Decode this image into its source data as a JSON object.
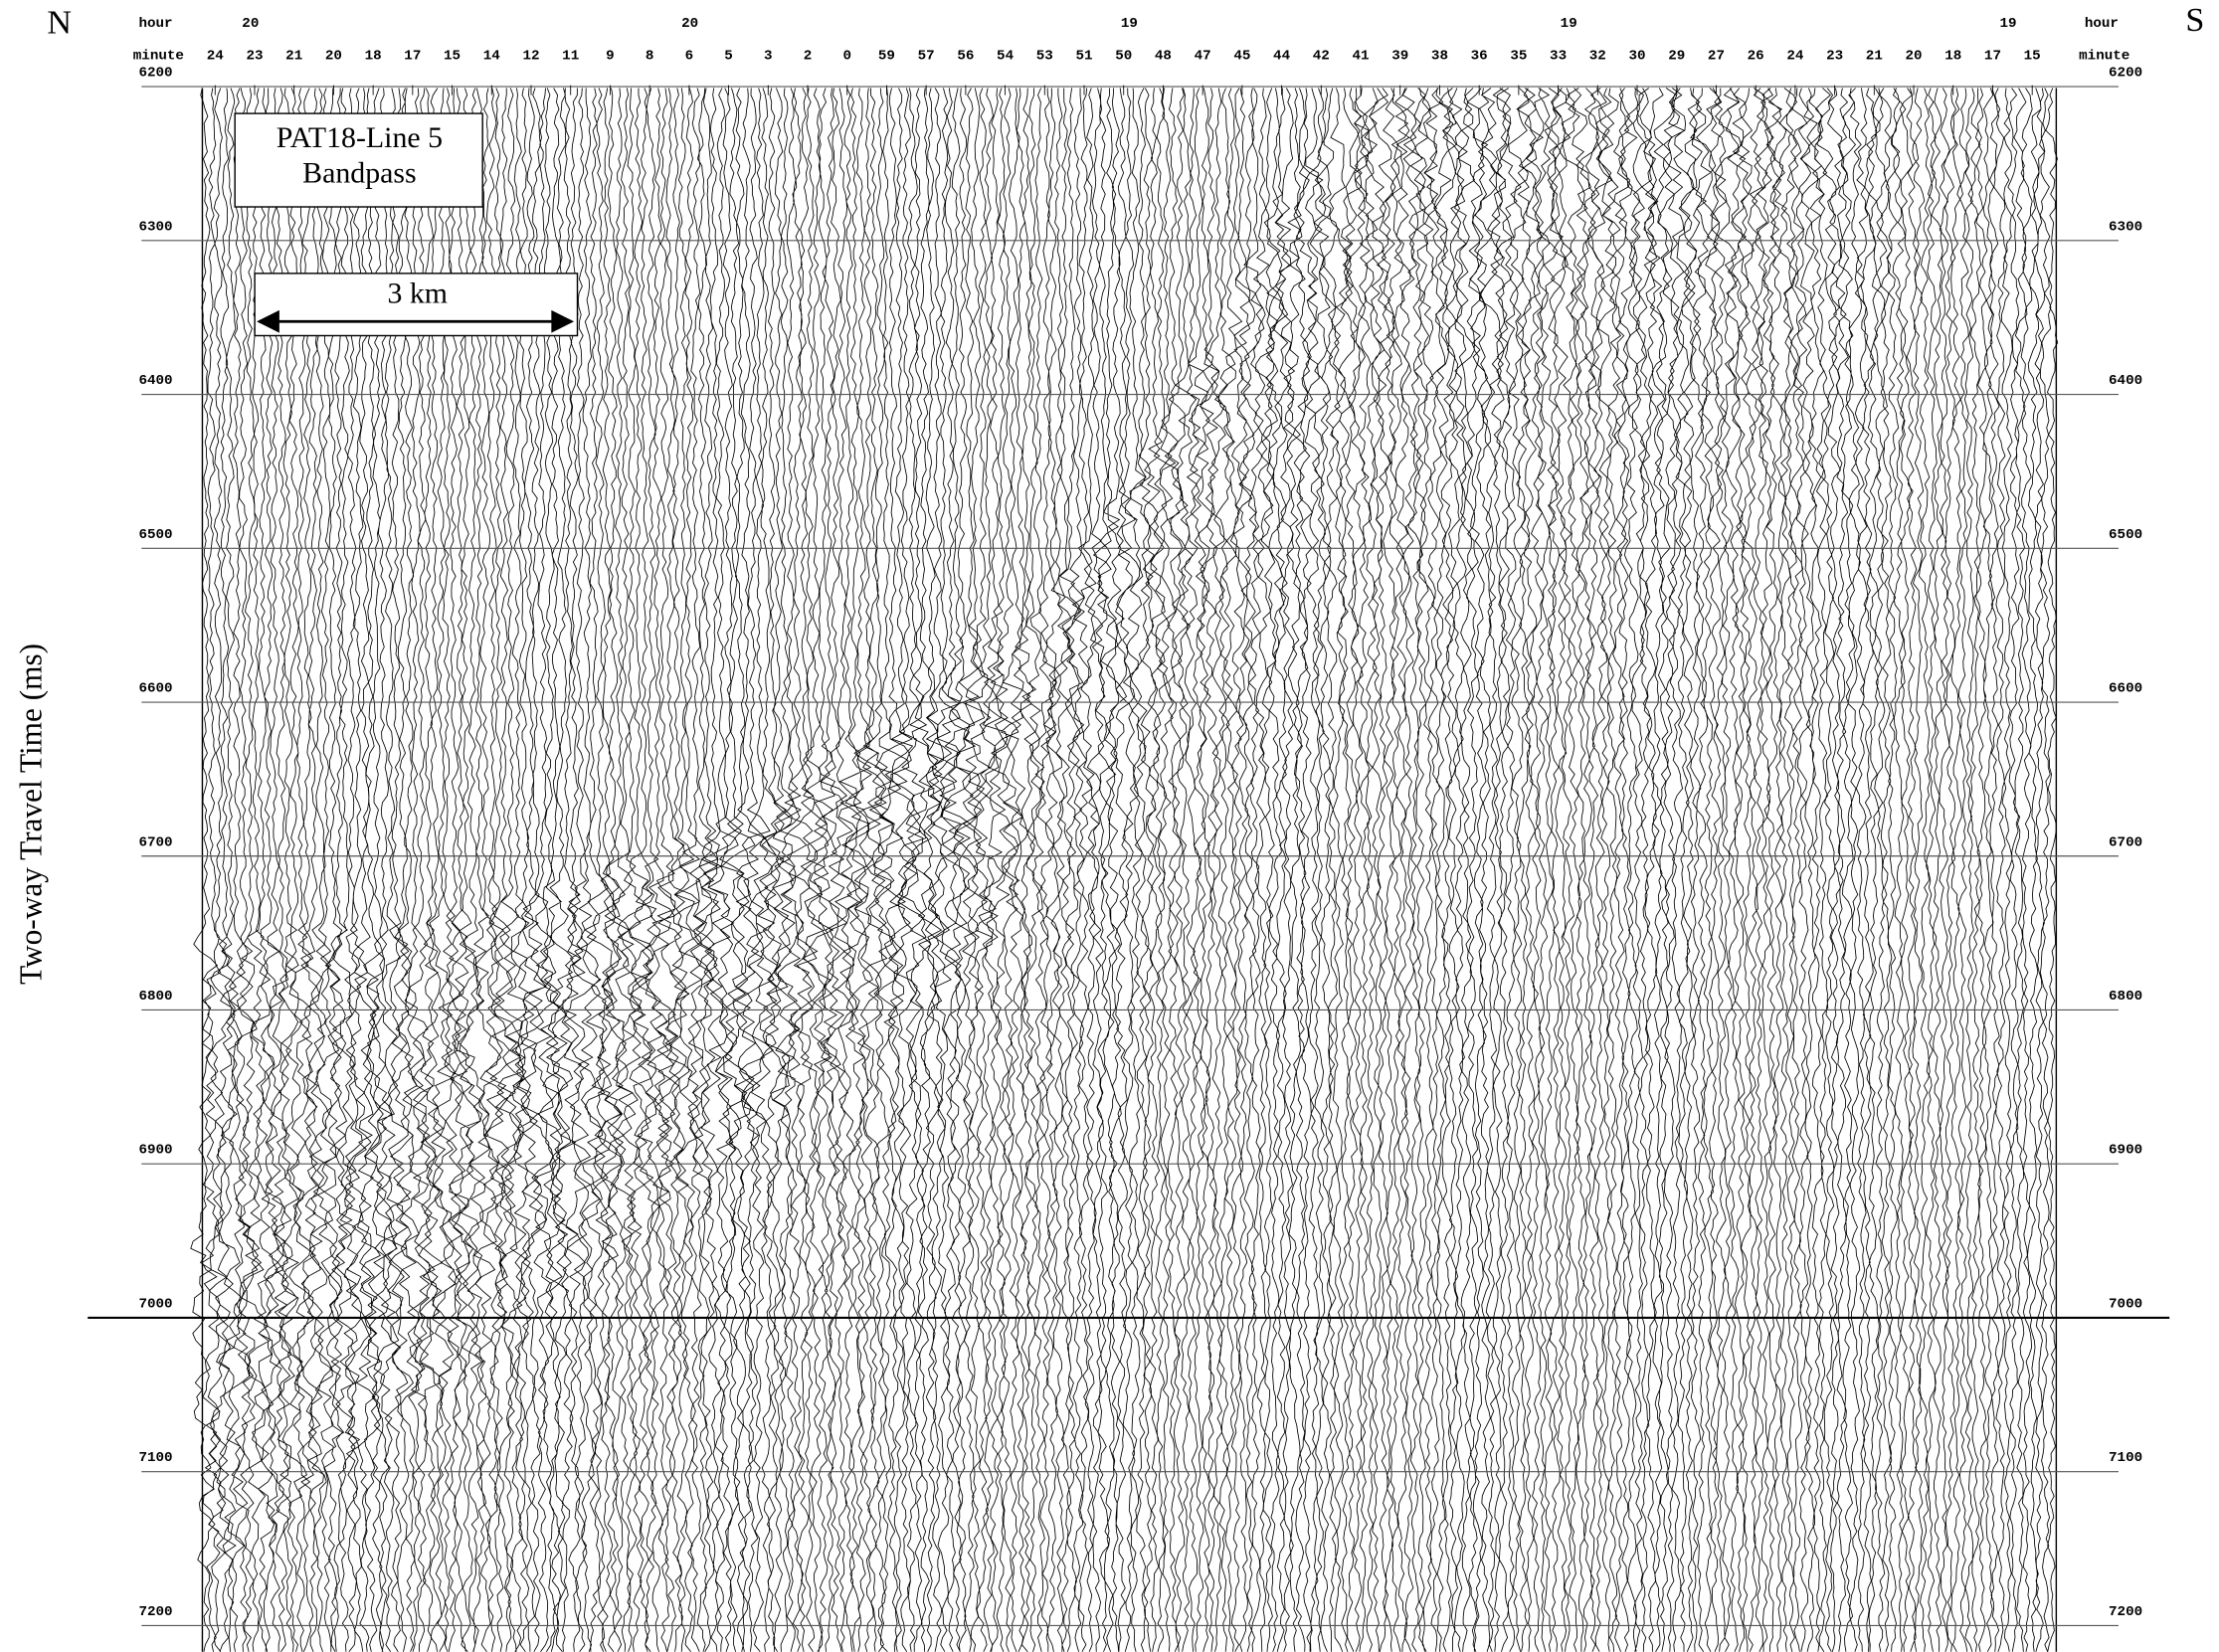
{
  "chart_data": {
    "type": "seismic-section",
    "title": "PAT18-Line 5",
    "subtitle": "Bandpass",
    "y_label": "Two-way Travel Time (ms)",
    "left_label": "N",
    "right_label": "S",
    "scale_bar": "3 km",
    "hour_label": "hour",
    "minute_label": "minute",
    "hours": [
      20,
      20,
      19,
      19,
      19
    ],
    "minutes": [
      24,
      23,
      21,
      20,
      18,
      17,
      15,
      14,
      12,
      11,
      9,
      8,
      6,
      5,
      3,
      2,
      0,
      59,
      57,
      56,
      54,
      53,
      51,
      50,
      48,
      47,
      45,
      44,
      42,
      41,
      39,
      38,
      36,
      35,
      33,
      32,
      30,
      29,
      27,
      26,
      24,
      23,
      21,
      20,
      18,
      17,
      15
    ],
    "ylim": [
      6200,
      7217
    ],
    "y_reversed": true,
    "yticks": [
      6200,
      6300,
      6400,
      6500,
      6600,
      6700,
      6800,
      6900,
      7000,
      7100,
      7200
    ],
    "grid": true
  }
}
